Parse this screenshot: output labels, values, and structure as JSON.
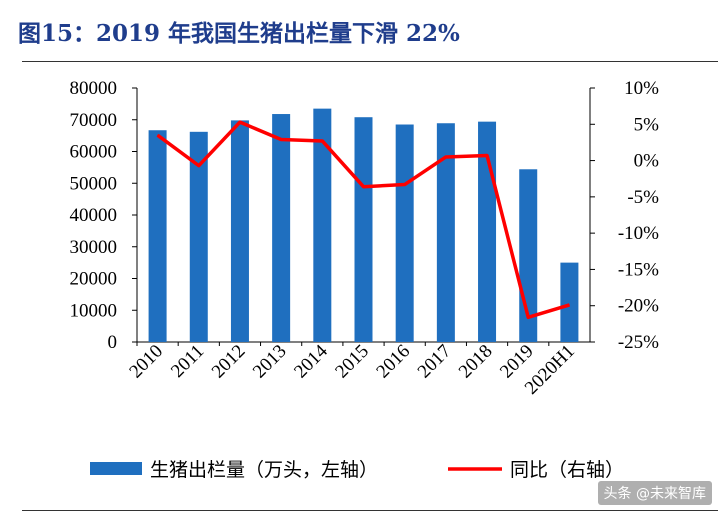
{
  "title": "图15：2019 年我国生猪出栏量下滑 22%",
  "watermark": "头条 @未来智库",
  "colors": {
    "bar": "#1f6fbf",
    "line": "#ff0000",
    "title": "#1f3d8c"
  },
  "chart_data": {
    "type": "bar",
    "title": "图15：2019 年我国生猪出栏量下滑 22%",
    "categories": [
      "2010",
      "2011",
      "2012",
      "2013",
      "2014",
      "2015",
      "2016",
      "2017",
      "2018",
      "2019",
      "2020H1"
    ],
    "series": [
      {
        "name": "生猪出栏量（万头，左轴）",
        "type": "bar",
        "axis": "left",
        "values": [
          66700,
          66200,
          69800,
          71800,
          73500,
          70800,
          68500,
          68900,
          69400,
          54400,
          25000
        ]
      },
      {
        "name": "同比（右轴）",
        "type": "line",
        "axis": "right",
        "values": [
          3.5,
          -0.7,
          5.3,
          2.9,
          2.7,
          -3.6,
          -3.3,
          0.5,
          0.7,
          -21.6,
          -19.9
        ]
      }
    ],
    "left_axis": {
      "ylim": [
        0,
        80000
      ],
      "ticks": [
        "0",
        "10000",
        "20000",
        "30000",
        "40000",
        "50000",
        "60000",
        "70000",
        "80000"
      ]
    },
    "right_axis": {
      "ylim": [
        -25,
        10
      ],
      "ticks": [
        "-25%",
        "-20%",
        "-15%",
        "-10%",
        "-5%",
        "0%",
        "5%",
        "10%"
      ]
    },
    "legend_position": "bottom",
    "grid": false
  }
}
